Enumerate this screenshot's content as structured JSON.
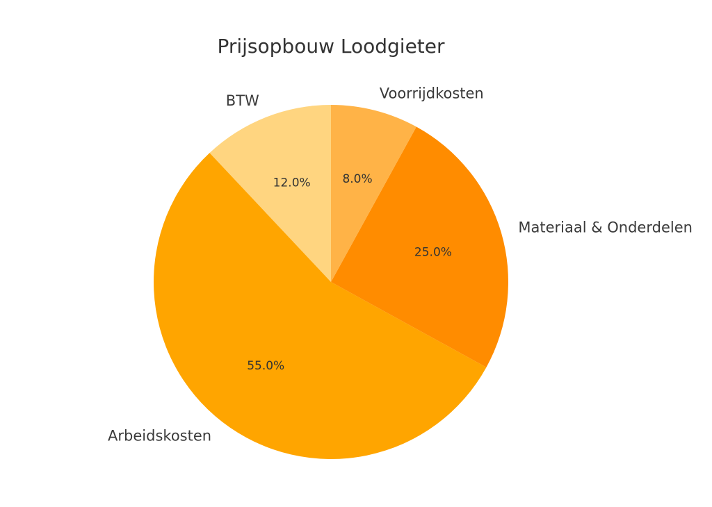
{
  "chart_data": {
    "type": "pie",
    "title": "Prijsopbouw Loodgieter",
    "start_angle_deg": 90,
    "direction": "counterclockwise",
    "slices": [
      {
        "label": "BTW",
        "value": 12.0,
        "pct_label": "12.0%",
        "color": "#FFD580"
      },
      {
        "label": "Arbeidskosten",
        "value": 55.0,
        "pct_label": "55.0%",
        "color": "#FFA500"
      },
      {
        "label": "Materiaal & Onderdelen",
        "value": 25.0,
        "pct_label": "25.0%",
        "color": "#FF8C00"
      },
      {
        "label": "Voorrijdkosten",
        "value": 8.0,
        "pct_label": "8.0%",
        "color": "#FFB347"
      }
    ]
  }
}
